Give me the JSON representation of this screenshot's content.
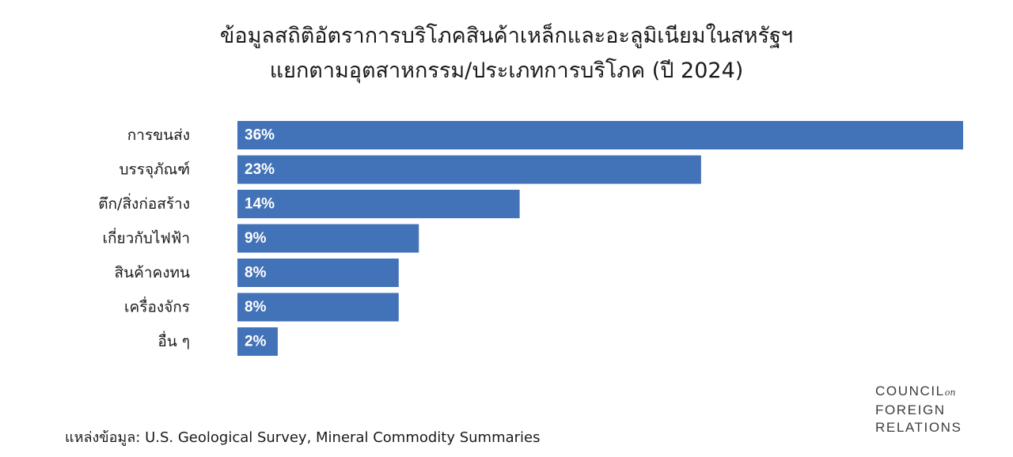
{
  "chart_data": {
    "type": "bar",
    "orientation": "horizontal",
    "title": "ข้อมูลสถิติอัตราการบริโภคสินค้าเหล็กและอะลูมิเนียมในสหรัฐฯ",
    "subtitle": "แยกตามอุตสาหกรรม/ประเภทการบริโภค (ปี 2024)",
    "categories": [
      "การขนส่ง",
      "บรรจุภัณฑ์",
      "ตึก/สิ่งก่อสร้าง",
      "เกี่ยวกับไฟฟ้า",
      "สินค้าคงทน",
      "เครื่องจักร",
      "อื่น ๆ"
    ],
    "values": [
      36,
      23,
      14,
      9,
      8,
      8,
      2
    ],
    "value_labels": [
      "36%",
      "23%",
      "14%",
      "9%",
      "8%",
      "8%",
      "2%"
    ],
    "bar_color": "#4272b7",
    "label_color": "#ffffff",
    "xlim": [
      0,
      36
    ],
    "grid": false,
    "legend": "none"
  },
  "source": "แหล่งข้อมูล:  U.S. Geological Survey, Mineral Commodity Summaries",
  "logo": {
    "line1": "COUNCIL",
    "line1_suffix": "on",
    "line2": "FOREIGN",
    "line3": "RELATIONS"
  }
}
